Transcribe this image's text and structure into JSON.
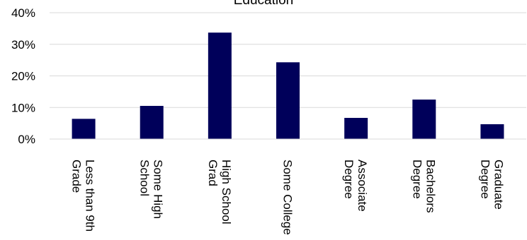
{
  "chart_data": {
    "type": "bar",
    "title": "Education",
    "xlabel": "",
    "ylabel": "",
    "ylim": [
      0,
      0.4
    ],
    "yticks": [
      "0%",
      "10%",
      "20%",
      "30%",
      "40%"
    ],
    "grid": true,
    "legend": "none",
    "bar_color": "#00005A",
    "categories": [
      [
        "Less than 9th",
        "Grade"
      ],
      [
        "Some High",
        "School"
      ],
      [
        "High School",
        "Grad"
      ],
      [
        "Some College"
      ],
      [
        "Associate",
        "Degree"
      ],
      [
        "Bachelors",
        "Degree"
      ],
      [
        "Graduate",
        "Degree"
      ]
    ],
    "values": [
      0.064,
      0.105,
      0.337,
      0.243,
      0.067,
      0.125,
      0.047
    ]
  }
}
